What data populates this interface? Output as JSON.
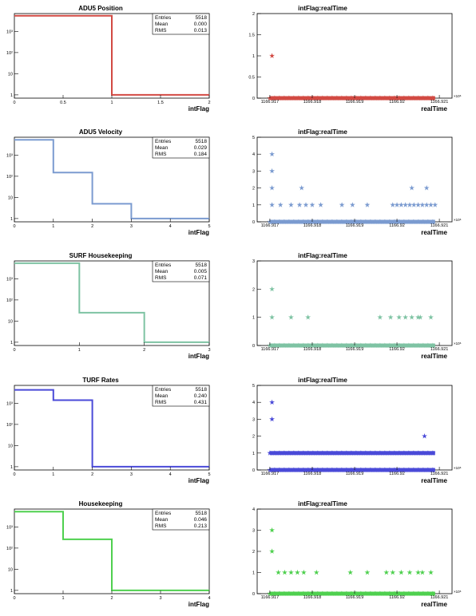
{
  "colors": {
    "adu5_position": "#d24a43",
    "adu5_velocity": "#7b9bd0",
    "surf_housekeeping": "#7ec3a3",
    "turf_rates": "#4a4ad8",
    "housekeeping": "#4fd04f"
  },
  "stats_labels": {
    "entries": "Entries",
    "mean": "Mean",
    "rms": "RMS"
  },
  "time_tick_labels": [
    "1166.917",
    "1166.918",
    "1166.919",
    "1166.92",
    "1166.921"
  ],
  "time_exponent": "×10⁶",
  "chart_data": [
    {
      "type": "histogram",
      "panel": "ADU5 Position",
      "title": "ADU5 Position",
      "xlabel": "intFlag",
      "xlim": [
        0,
        2
      ],
      "xticks": [
        "0",
        "0.5",
        "1",
        "1.5",
        "2"
      ],
      "ylog": true,
      "ylim": [
        0.7,
        7000
      ],
      "yticks": [
        "1",
        "10",
        "10²",
        "10³"
      ],
      "bin_edges": [
        0,
        1,
        2
      ],
      "counts": [
        5518,
        1
      ],
      "stats": {
        "entries": "5518",
        "mean": "0.000",
        "rms": "0.013"
      },
      "color_key": "adu5_position"
    },
    {
      "type": "scatter",
      "panel": "ADU5 Position",
      "title": "intFlag:realTime",
      "xlabel": "realTime",
      "xlim": [
        1166916.7,
        1166921.3
      ],
      "ylim": [
        0,
        2
      ],
      "yticks": [
        "0",
        "0.5",
        "1",
        "1.5",
        "2"
      ],
      "series": [
        {
          "value": 0,
          "x": [
            1166917.0,
            1166920.9
          ]
        },
        {
          "value": 1,
          "x": [
            1166917.05
          ]
        }
      ],
      "color_key": "adu5_position"
    },
    {
      "type": "histogram",
      "panel": "ADU5 Velocity",
      "title": "ADU5 Velocity",
      "xlabel": "intFlag",
      "xlim": [
        0,
        5
      ],
      "xticks": [
        "0",
        "1",
        "2",
        "3",
        "4",
        "5"
      ],
      "ylog": true,
      "ylim": [
        0.7,
        7000
      ],
      "yticks": [
        "1",
        "10",
        "10²",
        "10³"
      ],
      "bin_edges": [
        0,
        1,
        2,
        3,
        5
      ],
      "counts": [
        5300,
        150,
        5,
        1
      ],
      "stats": {
        "entries": "5518",
        "mean": "0.029",
        "rms": "0.184"
      },
      "color_key": "adu5_velocity"
    },
    {
      "type": "scatter",
      "panel": "ADU5 Velocity",
      "title": "intFlag:realTime",
      "xlabel": "realTime",
      "xlim": [
        1166916.7,
        1166921.3
      ],
      "ylim": [
        0,
        5
      ],
      "yticks": [
        "0",
        "1",
        "2",
        "3",
        "4",
        "5"
      ],
      "series": [
        {
          "value": 0,
          "x": [
            1166917.0,
            1166920.9
          ]
        },
        {
          "value": 1,
          "x": [
            1166917.05,
            1166917.25,
            1166917.5,
            1166917.7,
            1166917.85,
            1166918.0,
            1166918.2,
            1166918.7,
            1166918.95,
            1166919.3,
            1166919.9,
            1166920.0,
            1166920.1,
            1166920.2,
            1166920.3,
            1166920.4,
            1166920.5,
            1166920.6,
            1166920.7,
            1166920.8,
            1166920.9
          ]
        },
        {
          "value": 2,
          "x": [
            1166917.05,
            1166917.75,
            1166920.35,
            1166920.7
          ]
        },
        {
          "value": 3,
          "x": [
            1166917.05
          ]
        },
        {
          "value": 4,
          "x": [
            1166917.05
          ]
        }
      ],
      "color_key": "adu5_velocity"
    },
    {
      "type": "histogram",
      "panel": "SURF Housekeeping",
      "title": "SURF Housekeeping",
      "xlabel": "intFlag",
      "xlim": [
        0,
        3
      ],
      "xticks": [
        "0",
        "1",
        "2",
        "3"
      ],
      "ylog": true,
      "ylim": [
        0.7,
        7000
      ],
      "yticks": [
        "1",
        "10",
        "10²",
        "10³"
      ],
      "bin_edges": [
        0,
        1,
        2,
        3
      ],
      "counts": [
        5480,
        25,
        1
      ],
      "stats": {
        "entries": "5518",
        "mean": "0.005",
        "rms": "0.071"
      },
      "color_key": "surf_housekeeping"
    },
    {
      "type": "scatter",
      "panel": "SURF Housekeeping",
      "title": "intFlag:realTime",
      "xlabel": "realTime",
      "xlim": [
        1166916.7,
        1166921.3
      ],
      "ylim": [
        0,
        3
      ],
      "yticks": [
        "0",
        "1",
        "2",
        "3"
      ],
      "series": [
        {
          "value": 0,
          "x": [
            1166917.0,
            1166920.9
          ]
        },
        {
          "value": 1,
          "x": [
            1166917.05,
            1166917.5,
            1166917.9,
            1166919.6,
            1166919.85,
            1166920.05,
            1166920.2,
            1166920.35,
            1166920.5,
            1166920.55,
            1166920.8
          ]
        },
        {
          "value": 2,
          "x": [
            1166917.05
          ]
        }
      ],
      "color_key": "surf_housekeeping"
    },
    {
      "type": "histogram",
      "panel": "TURF Rates",
      "title": "TURF Rates",
      "xlabel": "intFlag",
      "xlim": [
        0,
        5
      ],
      "xticks": [
        "0",
        "1",
        "2",
        "3",
        "4",
        "5"
      ],
      "ylog": true,
      "ylim": [
        0.7,
        7000
      ],
      "yticks": [
        "1",
        "10",
        "10²",
        "10³"
      ],
      "bin_edges": [
        0,
        1,
        2,
        5
      ],
      "counts": [
        4300,
        1400,
        1
      ],
      "stats": {
        "entries": "5518",
        "mean": "0.240",
        "rms": "0.431"
      },
      "color_key": "turf_rates"
    },
    {
      "type": "scatter",
      "panel": "TURF Rates",
      "title": "intFlag:realTime",
      "xlabel": "realTime",
      "xlim": [
        1166916.7,
        1166921.3
      ],
      "ylim": [
        0,
        5
      ],
      "yticks": [
        "0",
        "1",
        "2",
        "3",
        "4",
        "5"
      ],
      "series": [
        {
          "value": 0,
          "x": [
            1166917.0,
            1166920.9
          ]
        },
        {
          "value": 1,
          "x": [
            1166917.0,
            1166920.9
          ]
        },
        {
          "value": 2,
          "x": [
            1166920.65
          ]
        },
        {
          "value": 3,
          "x": [
            1166917.05
          ]
        },
        {
          "value": 4,
          "x": [
            1166917.05
          ]
        }
      ],
      "color_key": "turf_rates"
    },
    {
      "type": "histogram",
      "panel": "Housekeeping",
      "title": "Housekeeping",
      "xlabel": "intFlag",
      "xlim": [
        0,
        4
      ],
      "xticks": [
        "0",
        "1",
        "2",
        "3",
        "4"
      ],
      "ylog": true,
      "ylim": [
        0.7,
        7000
      ],
      "yticks": [
        "1",
        "10",
        "10²",
        "10³"
      ],
      "bin_edges": [
        0,
        1,
        2,
        4
      ],
      "counts": [
        5250,
        260,
        1
      ],
      "stats": {
        "entries": "5518",
        "mean": "0.046",
        "rms": "0.213"
      },
      "color_key": "housekeeping"
    },
    {
      "type": "scatter",
      "panel": "Housekeeping",
      "title": "intFlag:realTime",
      "xlabel": "realTime",
      "xlim": [
        1166916.7,
        1166921.3
      ],
      "ylim": [
        0,
        4
      ],
      "yticks": [
        "0",
        "1",
        "2",
        "3",
        "4"
      ],
      "series": [
        {
          "value": 0,
          "x": [
            1166917.0,
            1166920.9
          ]
        },
        {
          "value": 1,
          "x": [
            1166917.2,
            1166917.35,
            1166917.5,
            1166917.65,
            1166917.8,
            1166918.1,
            1166918.9,
            1166919.3,
            1166919.75,
            1166919.9,
            1166920.1,
            1166920.3,
            1166920.5,
            1166920.6,
            1166920.8
          ]
        },
        {
          "value": 2,
          "x": [
            1166917.05
          ]
        },
        {
          "value": 3,
          "x": [
            1166917.05
          ]
        }
      ],
      "color_key": "housekeeping"
    }
  ]
}
